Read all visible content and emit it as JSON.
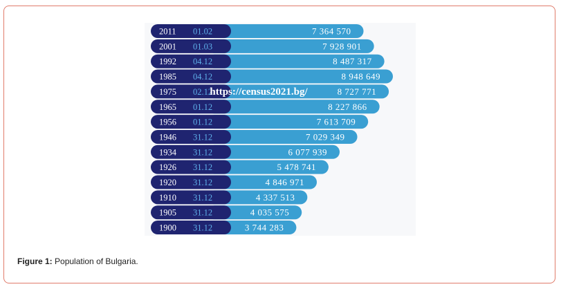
{
  "caption": {
    "label": "Figure 1:",
    "text": "Population of Bulgaria."
  },
  "watermark": "https://census2021.bg/",
  "colors": {
    "year_pill": "#1f2470",
    "bar": "#3a9fd2",
    "year_text": "#ffffff",
    "date_text": "#5fb0ea",
    "value_text": "#ffffff",
    "frame": "#e07b6a"
  },
  "chart_data": {
    "type": "bar",
    "orientation": "horizontal",
    "title": "",
    "xlabel": "",
    "ylabel": "",
    "xlim": [
      0,
      8948649
    ],
    "grid": false,
    "legend": "none",
    "categories": [
      "2011",
      "2001",
      "1992",
      "1985",
      "1975",
      "1965",
      "1956",
      "1946",
      "1934",
      "1926",
      "1920",
      "1910",
      "1905",
      "1900"
    ],
    "dates": [
      "01.02",
      "01.03",
      "04.12",
      "04.12",
      "02.12",
      "01.12",
      "01.12",
      "31.12",
      "31.12",
      "31.12",
      "31.12",
      "31.12",
      "31.12",
      "31.12"
    ],
    "values": [
      7364570,
      7928901,
      8487317,
      8948649,
      8727771,
      8227866,
      7613709,
      7029349,
      6077939,
      5478741,
      4846971,
      4337513,
      4035575,
      3744283
    ],
    "value_labels": [
      "7 364 570",
      "7 928 901",
      "8 487 317",
      "8 948 649",
      "8 727 771",
      "8 227 866",
      "7 613 709",
      "7 029 349",
      "6 077 939",
      "5 478 741",
      "4 846 971",
      "4 337 513",
      "4 035 575",
      "3 744 283"
    ]
  }
}
